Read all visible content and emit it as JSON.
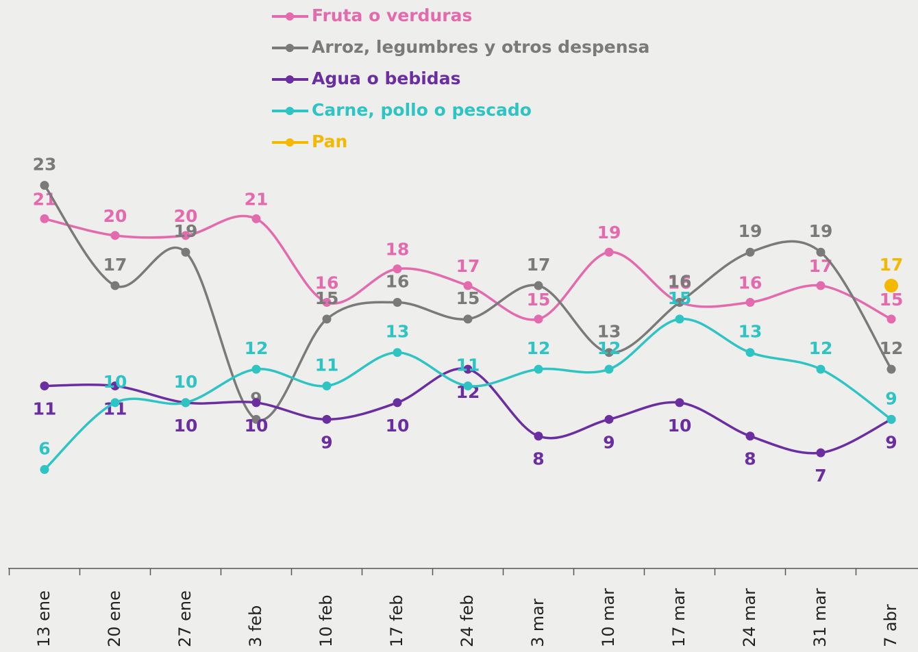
{
  "chart_data": {
    "type": "line",
    "categories": [
      "13 ene",
      "20 ene",
      "27 ene",
      "3 feb",
      "10 feb",
      "17 feb",
      "24 feb",
      "3 mar",
      "10 mar",
      "17 mar",
      "24 mar",
      "31 mar",
      "7 abr"
    ],
    "series": [
      {
        "name": "Fruta o verduras",
        "color": "#e46aae",
        "values": [
          21,
          20,
          20,
          21,
          16,
          18,
          17,
          15,
          19,
          16,
          16,
          17,
          15
        ]
      },
      {
        "name": "Arroz, legumbres y otros despensa",
        "color": "#7a7a7a",
        "values": [
          23,
          17,
          19,
          9,
          15,
          16,
          15,
          17,
          13,
          16,
          19,
          19,
          12
        ]
      },
      {
        "name": "Agua o bebidas",
        "color": "#6a2ea0",
        "values": [
          11,
          11,
          10,
          10,
          9,
          10,
          12,
          8,
          9,
          10,
          8,
          7,
          9
        ]
      },
      {
        "name": "Carne, pollo o pescado",
        "color": "#2ec4c4",
        "values": [
          6,
          10,
          10,
          12,
          11,
          13,
          11,
          12,
          12,
          15,
          13,
          12,
          9
        ]
      },
      {
        "name": "Pan",
        "color": "#f5b800",
        "values": [
          null,
          null,
          null,
          null,
          null,
          null,
          null,
          null,
          null,
          null,
          null,
          null,
          17
        ]
      }
    ],
    "ylim": [
      0,
      24.5
    ]
  }
}
